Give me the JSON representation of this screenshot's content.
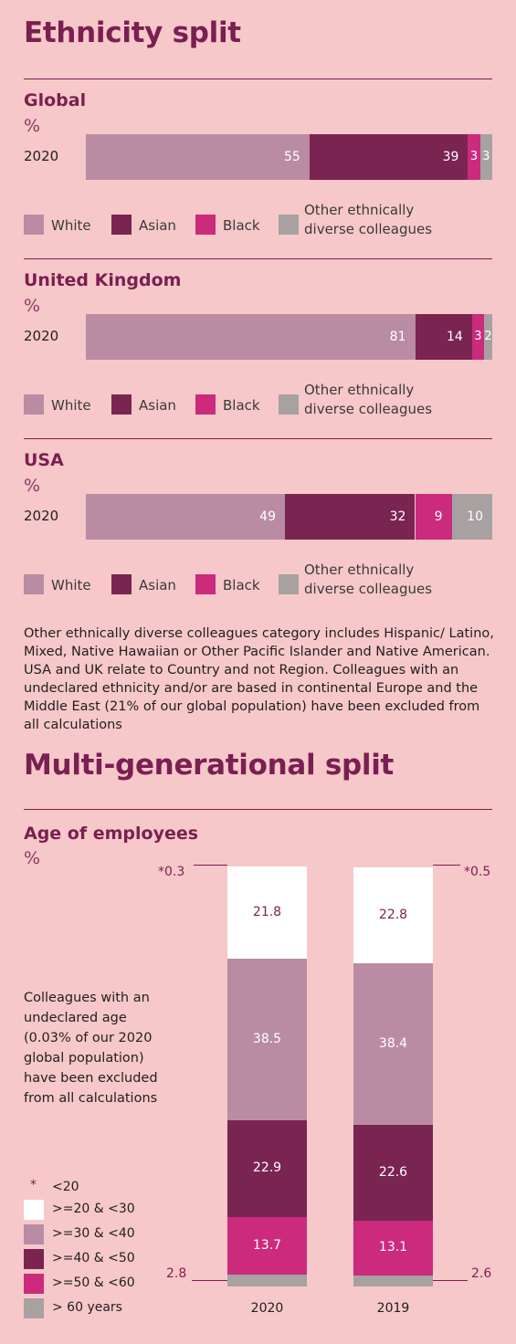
{
  "ethnicity": {
    "title": "Ethnicity split",
    "colors": {
      "white": "#b98ca3",
      "asian": "#7a2452",
      "black": "#cc2a7c",
      "other": "#a7a1a2"
    },
    "legend": [
      "White",
      "Asian",
      "Black",
      "Other ethnically diverse colleagues"
    ],
    "legend_other_line1": "Other ethnically",
    "legend_other_line2": "diverse colleagues",
    "note": "Other ethnically diverse colleagues category includes Hispanic/ Latino, Mixed, Native Hawaiian or Other Pacific Islander and Native American. USA and UK relate to Country and not Region. Colleagues with an undeclared ethnicity and/or are based in continental Europe and the Middle East (21% of our global population) have been excluded from all calculations"
  },
  "generational": {
    "title": "Multi-generational split",
    "note": "Colleagues with an undeclared age (0.03% of our 2020 global population) have been excluded from all calculations",
    "legend_star": "*",
    "colors": {
      "lt20": "#f7c8c9",
      "20_30": "#ffffff",
      "30_40": "#b98ca3",
      "40_50": "#7a2452",
      "50_60": "#cc2a7c",
      "gt60": "#a7a1a2"
    }
  },
  "chart_data": [
    {
      "type": "bar",
      "orientation": "horizontal",
      "stacked": true,
      "title": "Global",
      "ylabel": "%",
      "categories": [
        "2020"
      ],
      "series": [
        {
          "name": "White",
          "values": [
            55
          ]
        },
        {
          "name": "Asian",
          "values": [
            39
          ]
        },
        {
          "name": "Black",
          "values": [
            3
          ]
        },
        {
          "name": "Other ethnically diverse colleagues",
          "values": [
            3
          ]
        }
      ]
    },
    {
      "type": "bar",
      "orientation": "horizontal",
      "stacked": true,
      "title": "United Kingdom",
      "ylabel": "%",
      "categories": [
        "2020"
      ],
      "series": [
        {
          "name": "White",
          "values": [
            81
          ]
        },
        {
          "name": "Asian",
          "values": [
            14
          ]
        },
        {
          "name": "Black",
          "values": [
            3
          ]
        },
        {
          "name": "Other ethnically diverse colleagues",
          "values": [
            2
          ]
        }
      ]
    },
    {
      "type": "bar",
      "orientation": "horizontal",
      "stacked": true,
      "title": "USA",
      "ylabel": "%",
      "categories": [
        "2020"
      ],
      "series": [
        {
          "name": "White",
          "values": [
            49
          ]
        },
        {
          "name": "Asian",
          "values": [
            32
          ]
        },
        {
          "name": "Black",
          "values": [
            9
          ]
        },
        {
          "name": "Other ethnically diverse colleagues",
          "values": [
            10
          ]
        }
      ]
    },
    {
      "type": "bar",
      "orientation": "vertical",
      "stacked": true,
      "title": "Age of employees",
      "ylabel": "%",
      "categories": [
        "2020",
        "2019"
      ],
      "series": [
        {
          "name": "<20",
          "values": [
            0.3,
            0.5
          ],
          "labels": [
            "*0.3",
            "*0.5"
          ]
        },
        {
          "name": ">=20 & <30",
          "values": [
            21.8,
            22.8
          ]
        },
        {
          "name": ">=30 & <40",
          "values": [
            38.5,
            38.4
          ]
        },
        {
          "name": ">=40 & <50",
          "values": [
            22.9,
            22.6
          ]
        },
        {
          "name": ">=50 & <60",
          "values": [
            13.7,
            13.1
          ]
        },
        {
          "name": "> 60 years",
          "values": [
            2.8,
            2.6
          ]
        }
      ]
    }
  ]
}
